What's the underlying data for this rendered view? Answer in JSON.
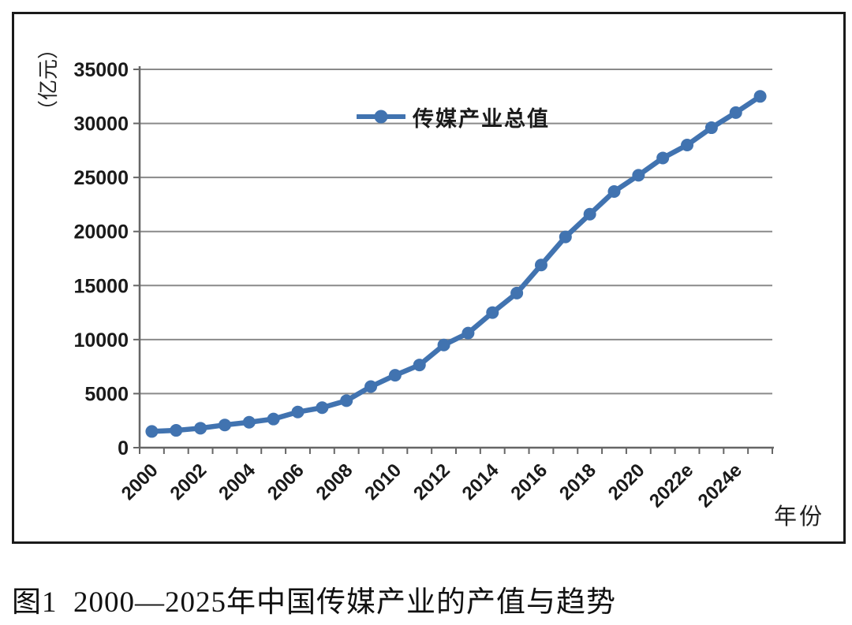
{
  "figure": {
    "caption": "图1  2000—2025年中国传媒产业的产值与趋势"
  },
  "chart_data": {
    "type": "line",
    "title": "",
    "y_axis_title": "（亿元）",
    "x_axis_title": "年份",
    "ylim": [
      0,
      35000
    ],
    "ytick_step": 5000,
    "y_tick_labels": [
      "0",
      "5000",
      "10000",
      "15000",
      "20000",
      "25000",
      "30000",
      "35000"
    ],
    "grid": true,
    "legend_position": "top-center-inside",
    "line_color": "#4173B0",
    "categories": [
      "2000",
      "2001",
      "2002",
      "2003",
      "2004",
      "2005",
      "2006",
      "2007",
      "2008",
      "2009",
      "2010",
      "2011",
      "2012",
      "2013",
      "2014",
      "2015",
      "2016",
      "2017",
      "2018",
      "2019",
      "2020",
      "2021",
      "2022",
      "2023",
      "2024",
      "2025"
    ],
    "x_tick_labels": [
      "2000",
      "2002",
      "2004",
      "2006",
      "2008",
      "2010",
      "2012",
      "2014",
      "2016",
      "2018",
      "2020",
      "2022e",
      "2024e"
    ],
    "series": [
      {
        "name": "传媒产业总值",
        "values": [
          1500,
          1600,
          1800,
          2100,
          2350,
          2650,
          3300,
          3700,
          4350,
          5650,
          6700,
          7650,
          9500,
          10600,
          12500,
          14300,
          16900,
          19500,
          21600,
          23700,
          25200,
          26800,
          28000,
          29600,
          31000,
          32500
        ]
      }
    ]
  }
}
